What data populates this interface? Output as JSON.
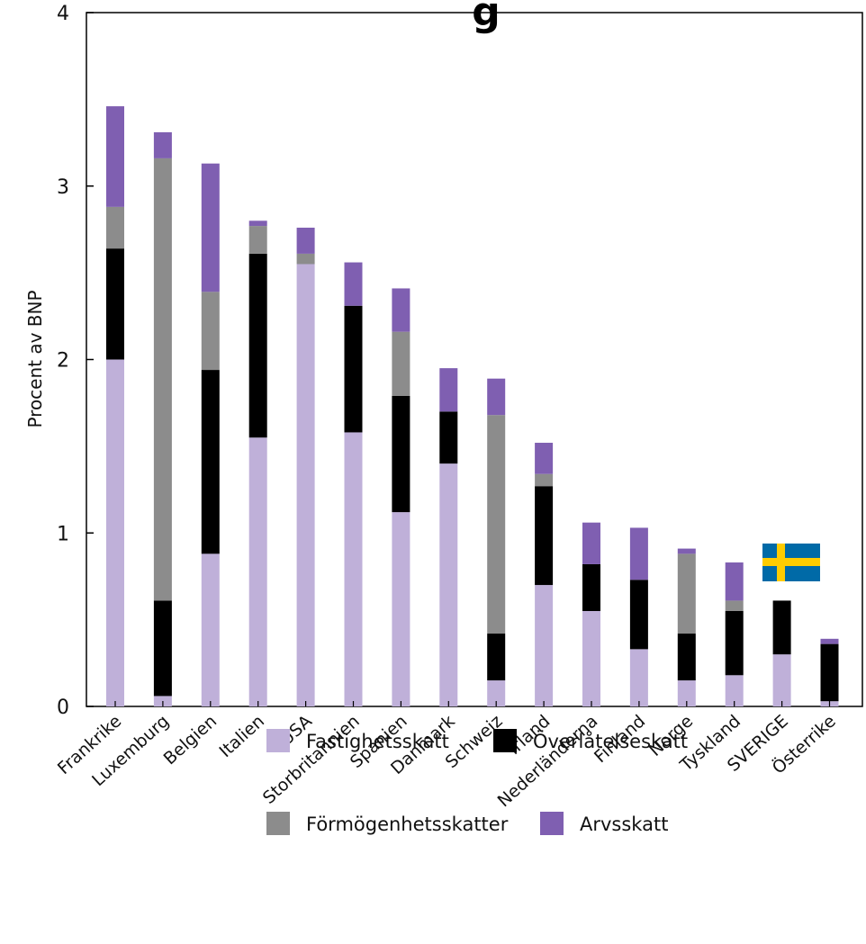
{
  "chart_data": {
    "type": "bar",
    "stacked": true,
    "title_fragment": "g",
    "ylabel": "Procent av BNP",
    "ylim": [
      0,
      4
    ],
    "yticks": [
      "0",
      "1",
      "2",
      "3",
      "4"
    ],
    "categories": [
      "Frankrike",
      "Luxemburg",
      "Belgien",
      "Italien",
      "USA",
      "Storbritannien",
      "Spanien",
      "Danmark",
      "Schweiz",
      "Irland",
      "Nederländerna",
      "Finland",
      "Norge",
      "Tyskland",
      "SVERIGE",
      "Österrike"
    ],
    "highlight_category": "SVERIGE",
    "highlight_color": "#8a67b5",
    "flag_category": "Tyskland",
    "series": [
      {
        "name": "Fastighetsskatt",
        "color": "#bfb0d9",
        "values": [
          2.0,
          0.06,
          0.88,
          1.55,
          2.55,
          1.58,
          1.12,
          1.4,
          0.15,
          0.7,
          0.55,
          0.33,
          0.15,
          0.18,
          0.3,
          0.03
        ]
      },
      {
        "name": "Överlåtelseskatt",
        "color": "#000000",
        "values": [
          0.64,
          0.55,
          1.06,
          1.06,
          0.0,
          0.73,
          0.67,
          0.3,
          0.27,
          0.57,
          0.27,
          0.4,
          0.27,
          0.37,
          0.31,
          0.33
        ]
      },
      {
        "name": "Förmögenhetsskatter",
        "color": "#8c8c8c",
        "values": [
          0.24,
          2.55,
          0.45,
          0.16,
          0.06,
          0.0,
          0.37,
          0.0,
          1.26,
          0.07,
          0.0,
          0.0,
          0.46,
          0.06,
          0.0,
          0.0
        ]
      },
      {
        "name": "Arvsskatt",
        "color": "#7f5fb1",
        "values": [
          0.58,
          0.15,
          0.74,
          0.03,
          0.15,
          0.25,
          0.25,
          0.25,
          0.21,
          0.18,
          0.24,
          0.3,
          0.03,
          0.22,
          0.0,
          0.03
        ]
      }
    ],
    "legend_position": "bottom",
    "grid": false
  },
  "flag": {
    "name": "sweden-flag",
    "blue": "#006aa7",
    "yellow": "#fecc00"
  }
}
